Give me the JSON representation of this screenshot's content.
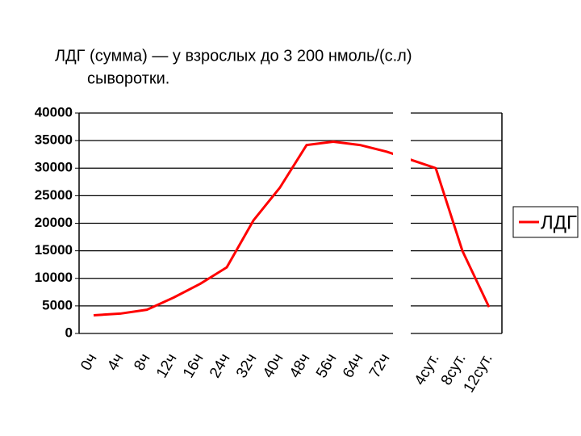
{
  "chart_data": {
    "type": "line",
    "title": "ЛДГ (сумма) — у взрослых до 3 200 нмоль/(с.л)",
    "subtitle": "сыворотки.",
    "categories": [
      "0ч",
      "4ч",
      "8ч",
      "12ч",
      "16ч",
      "24ч",
      "32ч",
      "40ч",
      "48ч",
      "56ч",
      "64ч",
      "72ч",
      "4сут.",
      "8сут.",
      "12сут."
    ],
    "series": [
      {
        "name": "ЛДГ",
        "color": "#ff0000",
        "values": [
          3300,
          3600,
          4300,
          6500,
          9000,
          12000,
          20500,
          26500,
          34200,
          34800,
          34200,
          33000,
          30000,
          15000,
          4800
        ]
      }
    ],
    "ylim": [
      0,
      40000
    ],
    "yticks": [
      0,
      5000,
      10000,
      15000,
      20000,
      25000,
      30000,
      35000,
      40000
    ],
    "grid": true,
    "legend": "right"
  }
}
